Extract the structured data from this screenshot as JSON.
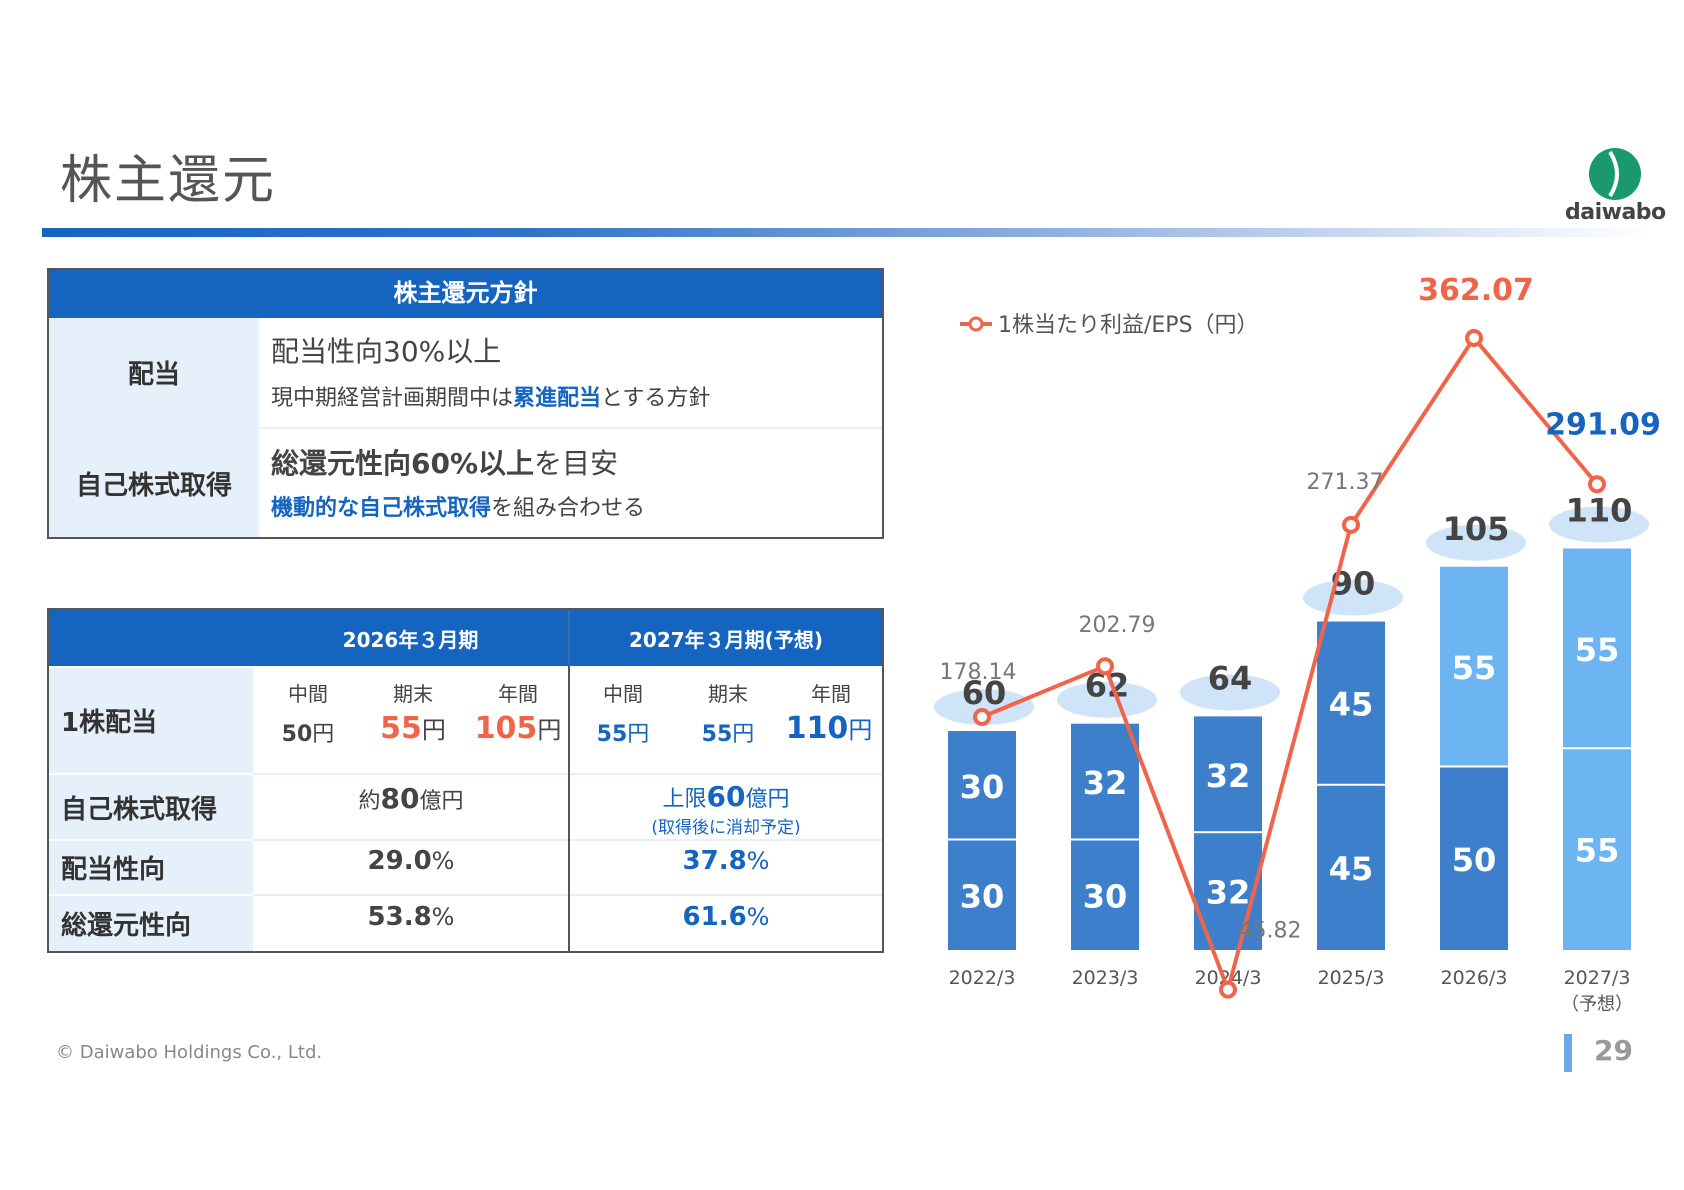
{
  "page": {
    "title": "株主還元",
    "logo_text": "daiwabo",
    "footer": "© Daiwabo Holdings Co., Ltd.",
    "page_number": "29",
    "colors": {
      "primary": "#1565c0",
      "accent": "#f0654a",
      "label_bg": "#e6f0fa"
    }
  },
  "policy": {
    "header": "株主還元方針",
    "dividend": {
      "label": "配当",
      "line1": "配当性向30%以上",
      "line2_pre": "現中期経営計画期間中は",
      "line2_hl": "累進配当",
      "line2_post": "とする方針"
    },
    "buyback": {
      "label": "自己株式取得",
      "line1_bold": "総還元性向60%以上",
      "line1_post": "を目安",
      "line2_hl": "機動的な自己株式取得",
      "line2_post": "を組み合わせる"
    }
  },
  "dividend_table": {
    "col1_header": "2026年３月期",
    "col2_header": "2027年３月期(予想)",
    "sub_headers": [
      "中間",
      "期末",
      "年間"
    ],
    "rows": {
      "dps": {
        "label": "1株配当",
        "fy2026": {
          "interim": "50",
          "final": "55",
          "annual": "105"
        },
        "fy2027": {
          "interim": "55",
          "final": "55",
          "annual": "110"
        },
        "unit": "円"
      },
      "buyback": {
        "label": "自己株式取得",
        "fy2026_pre": "約",
        "fy2026_num": "80",
        "fy2026_unit": "億円",
        "fy2027_pre": "上限",
        "fy2027_num": "60",
        "fy2027_unit": "億円",
        "fy2027_note": "(取得後に消却予定)"
      },
      "payout": {
        "label": "配当性向",
        "fy2026": "29.0",
        "fy2027": "37.8",
        "unit": "%"
      },
      "total_return": {
        "label": "総還元性向",
        "fy2026": "53.8",
        "fy2027": "61.6",
        "unit": "%"
      }
    }
  },
  "chart_data": {
    "type": "bar",
    "categories": [
      "2022/3",
      "2023/3",
      "2024/3",
      "2025/3",
      "2026/3",
      "2027/3"
    ],
    "category_notes": [
      "",
      "",
      "",
      "",
      "",
      "（予想）"
    ],
    "series": [
      {
        "values": [
          30,
          30,
          32,
          45,
          50,
          55
        ]
      },
      {
        "values": [
          30,
          32,
          32,
          45,
          55,
          55
        ]
      }
    ],
    "totals": [
      60,
      62,
      64,
      90,
      105,
      110
    ],
    "line": {
      "name": "1株当たり利益/EPS（円）",
      "values": [
        178.14,
        202.79,
        45.82,
        271.37,
        362.07,
        291.09
      ],
      "labels": [
        "178.14",
        "202.79",
        "45.82",
        "271.37",
        "362.07",
        "291.09"
      ],
      "color": "#f0654a"
    },
    "bar_colors": [
      "#3d7fcb",
      "#3d7fcb",
      "#3d7fcb",
      "#3d7fcb",
      "#3d7fcb+#6cb4f2",
      "#6cb4f2"
    ]
  }
}
